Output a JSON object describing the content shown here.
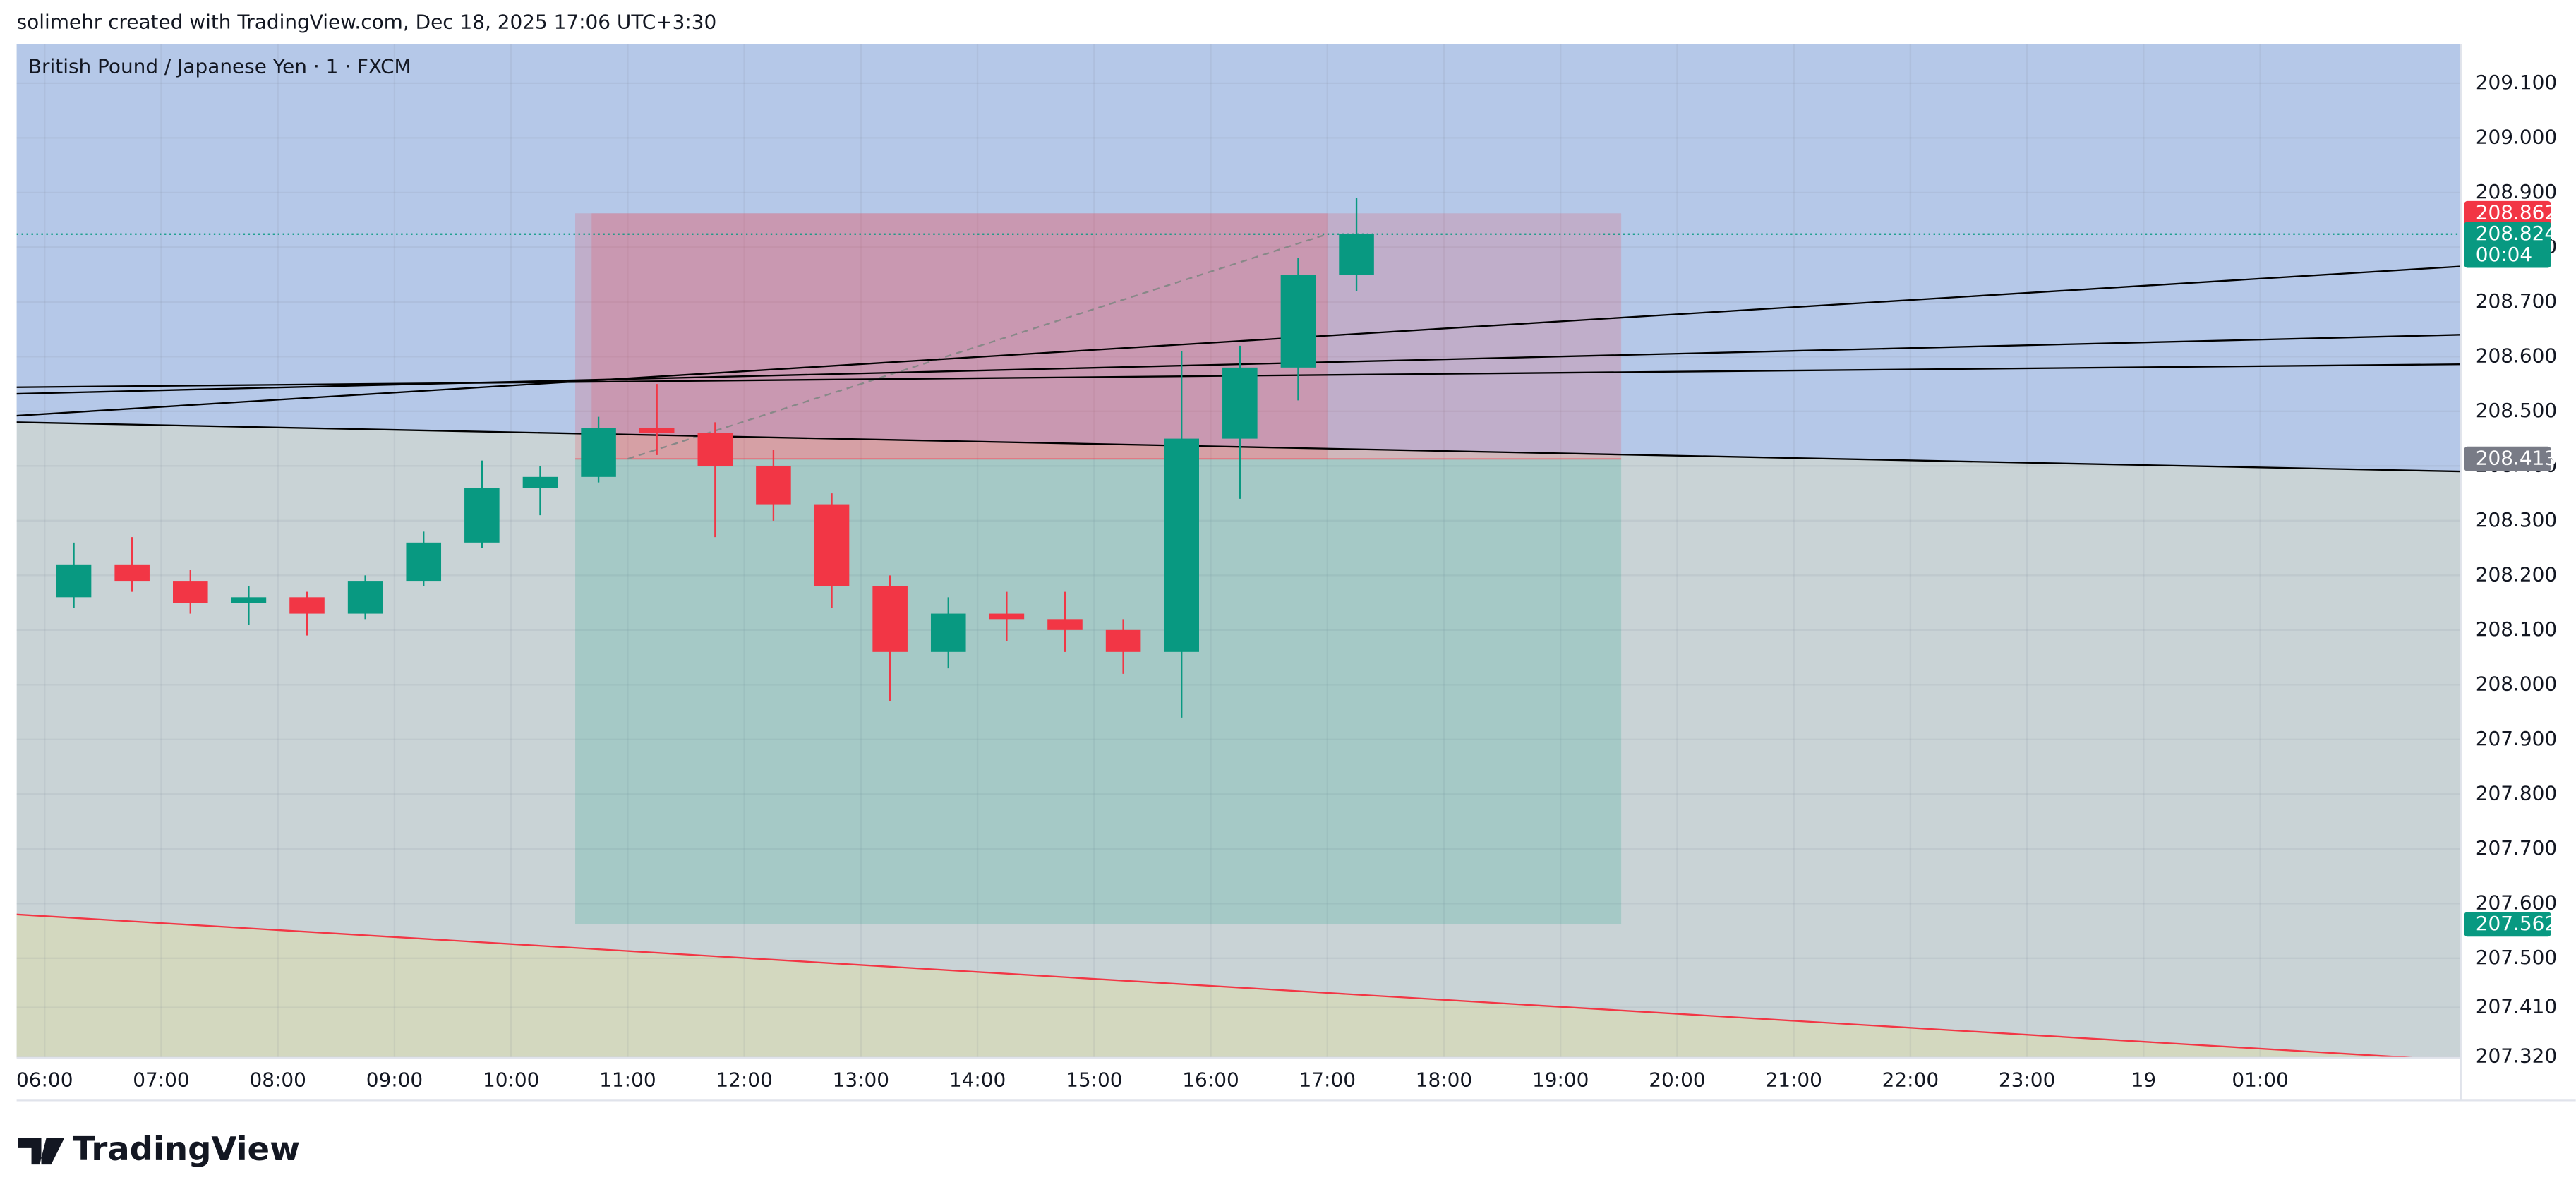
{
  "attribution": "solimehr created with TradingView.com, Dec 18, 2025 17:06 UTC+3:30",
  "brand": "TradingView",
  "chart_data": {
    "type": "candlestick",
    "title": "British Pound / Japanese Yen · 1 · FXCM",
    "up_color": "#089981",
    "down_color": "#f23645",
    "xlim": [
      5.76,
      26.72
    ],
    "xticks": [
      {
        "value": 6,
        "label": "06:00"
      },
      {
        "value": 7,
        "label": "07:00"
      },
      {
        "value": 8,
        "label": "08:00"
      },
      {
        "value": 9,
        "label": "09:00"
      },
      {
        "value": 10,
        "label": "10:00"
      },
      {
        "value": 11,
        "label": "11:00"
      },
      {
        "value": 12,
        "label": "12:00"
      },
      {
        "value": 13,
        "label": "13:00"
      },
      {
        "value": 14,
        "label": "14:00"
      },
      {
        "value": 15,
        "label": "15:00"
      },
      {
        "value": 16,
        "label": "16:00"
      },
      {
        "value": 17,
        "label": "17:00"
      },
      {
        "value": 18,
        "label": "18:00"
      },
      {
        "value": 19,
        "label": "19:00"
      },
      {
        "value": 20,
        "label": "20:00"
      },
      {
        "value": 21,
        "label": "21:00"
      },
      {
        "value": 22,
        "label": "22:00"
      },
      {
        "value": 23,
        "label": "23:00"
      },
      {
        "value": 24,
        "label": "19"
      },
      {
        "value": 25,
        "label": "01:00"
      }
    ],
    "ylim": [
      207.318,
      209.171
    ],
    "yticks": [
      {
        "value": 209.1,
        "label": "209.100"
      },
      {
        "value": 209.0,
        "label": "209.000"
      },
      {
        "value": 208.9,
        "label": "208.900"
      },
      {
        "value": 208.8,
        "label": "208.800"
      },
      {
        "value": 208.7,
        "label": "208.700"
      },
      {
        "value": 208.6,
        "label": "208.600"
      },
      {
        "value": 208.5,
        "label": "208.500"
      },
      {
        "value": 208.4,
        "label": "208.400"
      },
      {
        "value": 208.3,
        "label": "208.300"
      },
      {
        "value": 208.2,
        "label": "208.200"
      },
      {
        "value": 208.1,
        "label": "208.100"
      },
      {
        "value": 208.0,
        "label": "208.000"
      },
      {
        "value": 207.9,
        "label": "207.900"
      },
      {
        "value": 207.8,
        "label": "207.800"
      },
      {
        "value": 207.7,
        "label": "207.700"
      },
      {
        "value": 207.6,
        "label": "207.600"
      },
      {
        "value": 207.5,
        "label": "207.500"
      },
      {
        "value": 207.41,
        "label": "207.410"
      },
      {
        "value": 207.32,
        "label": "207.320"
      }
    ],
    "grid": true,
    "x": [
      6.0,
      6.5,
      7.0,
      7.5,
      8.0,
      8.5,
      9.0,
      9.5,
      10.0,
      10.5,
      11.0,
      11.5,
      12.0,
      12.5,
      13.0,
      13.5,
      14.0,
      14.5,
      15.0,
      15.5,
      16.0,
      16.5,
      17.0
    ],
    "open": [
      208.16,
      208.22,
      208.19,
      208.15,
      208.16,
      208.13,
      208.19,
      208.26,
      208.36,
      208.38,
      208.47,
      208.46,
      208.4,
      208.33,
      208.18,
      208.06,
      208.13,
      208.12,
      208.1,
      208.06,
      208.45,
      208.58,
      208.75
    ],
    "high": [
      208.26,
      208.27,
      208.21,
      208.18,
      208.17,
      208.2,
      208.28,
      208.41,
      208.4,
      208.49,
      208.55,
      208.48,
      208.43,
      208.35,
      208.2,
      208.16,
      208.17,
      208.17,
      208.12,
      208.61,
      208.62,
      208.78,
      208.89
    ],
    "low": [
      208.14,
      208.17,
      208.13,
      208.11,
      208.09,
      208.12,
      208.18,
      208.25,
      208.31,
      208.37,
      208.42,
      208.27,
      208.3,
      208.14,
      207.97,
      208.03,
      208.08,
      208.06,
      208.02,
      207.94,
      208.34,
      208.52,
      208.72
    ],
    "close": [
      208.22,
      208.19,
      208.15,
      208.16,
      208.13,
      208.19,
      208.26,
      208.36,
      208.38,
      208.47,
      208.46,
      208.4,
      208.33,
      208.18,
      208.06,
      208.13,
      208.12,
      208.1,
      208.06,
      208.45,
      208.58,
      208.75,
      208.824
    ],
    "current_price": {
      "value": 208.824,
      "countdown": "00:04"
    },
    "position": {
      "entry": 208.413,
      "stop": 208.862,
      "target": 207.562,
      "x": [
        10.55,
        19.52
      ]
    },
    "trendlines": [
      {
        "x": [
          5.76,
          26.72
        ],
        "y": [
          208.492,
          208.765
        ],
        "color": "#000000"
      },
      {
        "x": [
          5.76,
          26.72
        ],
        "y": [
          208.532,
          208.64
        ],
        "color": "#000000"
      },
      {
        "x": [
          5.76,
          26.72
        ],
        "y": [
          208.544,
          208.586
        ],
        "color": "#000000"
      },
      {
        "x": [
          5.76,
          26.72
        ],
        "y": [
          208.48,
          208.39
        ],
        "color": "#000000"
      },
      {
        "x": [
          5.76,
          26.3
        ],
        "y": [
          207.58,
          207.318
        ],
        "color": "#f23645"
      }
    ]
  }
}
